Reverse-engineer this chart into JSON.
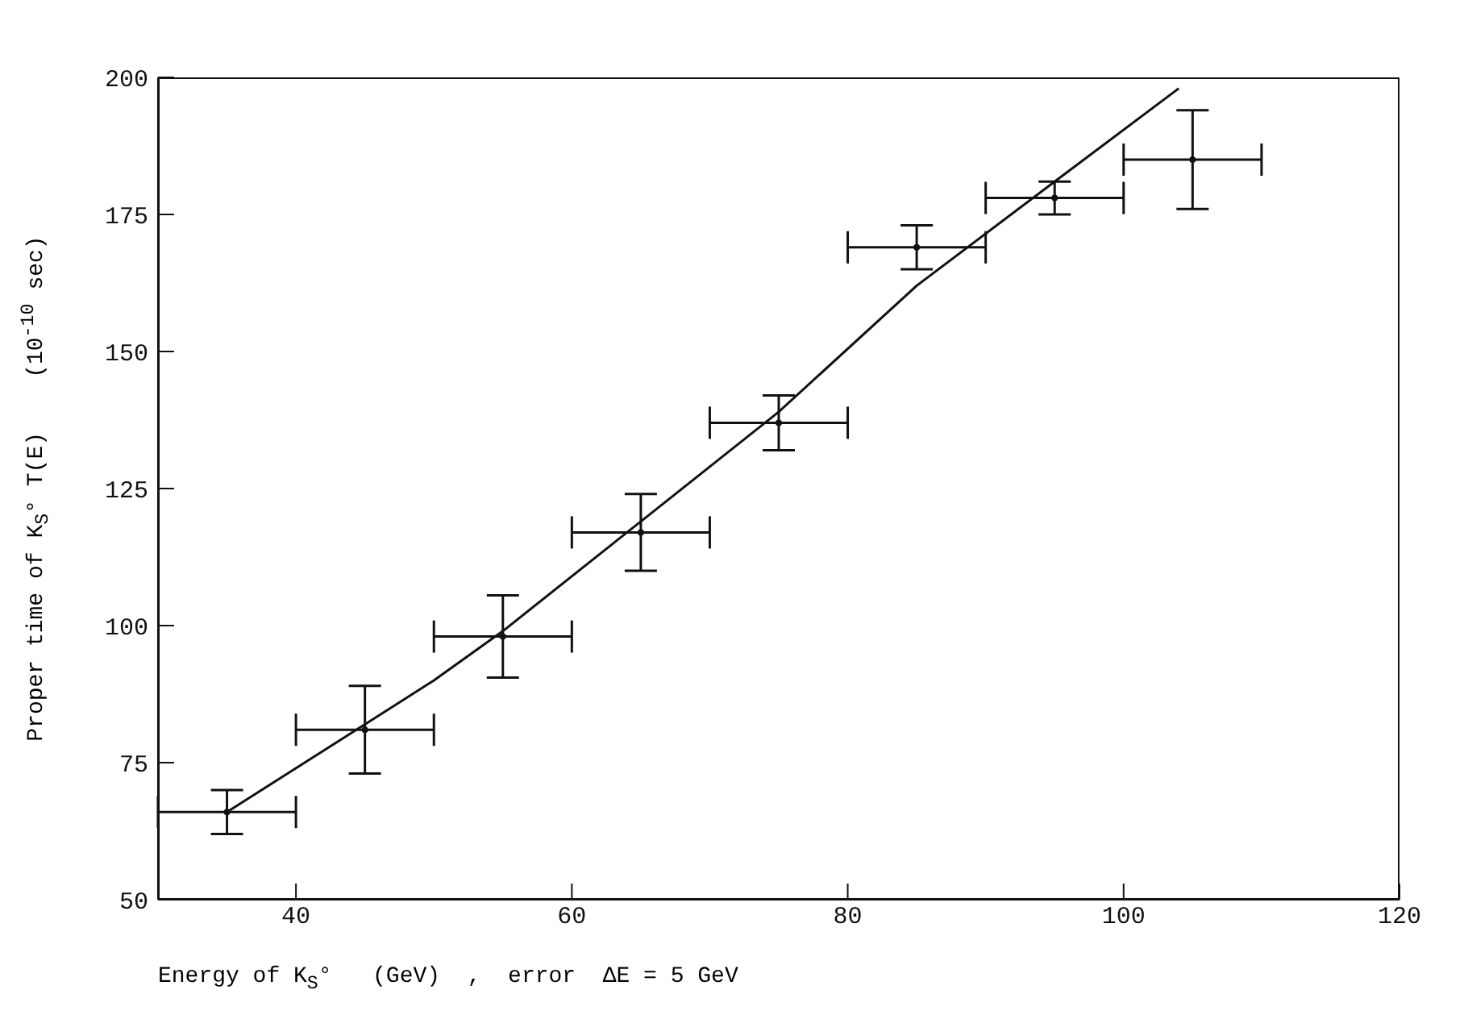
{
  "chart_data": {
    "type": "scatter",
    "xlabel": "Energy of K$_{S}$°   (GeV)  ,  error  ΔE = 5 GeV",
    "ylabel": "Proper time of K$_{S}$° T(E)    (10$^{-10}$ sec)",
    "xlim": [
      30,
      120
    ],
    "xticks": [
      40,
      60,
      80,
      100,
      120
    ],
    "ylim": [
      50,
      200
    ],
    "yticks": [
      50,
      75,
      100,
      125,
      150,
      175,
      200
    ],
    "series": [
      {
        "color": "#111111",
        "marker": "circle",
        "x": [
          35,
          45,
          55,
          65,
          75,
          85,
          95,
          105
        ],
        "values": [
          66,
          81,
          98,
          117,
          137,
          169,
          178,
          185
        ],
        "errors": [
          4,
          8,
          7.5,
          7,
          5,
          4,
          3,
          9
        ],
        "xerrors": [
          5,
          5,
          5,
          5,
          5,
          5,
          5,
          5
        ]
      },
      {
        "type": "line",
        "color": "#111111",
        "x": [
          35,
          45,
          50,
          55,
          65,
          75,
          85,
          95,
          104
        ],
        "values": [
          66,
          82,
          90,
          99,
          119,
          139,
          162,
          181,
          198
        ]
      }
    ]
  }
}
